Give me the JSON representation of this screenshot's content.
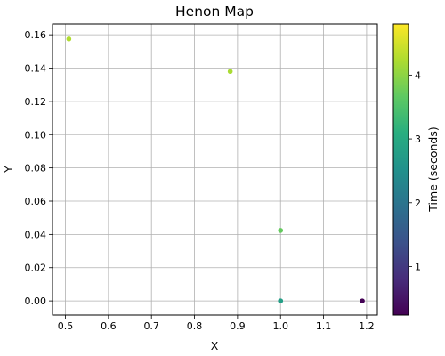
{
  "chart_data": {
    "type": "scatter",
    "title": "Henon Map",
    "xlabel": "X",
    "ylabel": "Y",
    "xlim": [
      0.47,
      1.225
    ],
    "ylim": [
      -0.0085,
      0.1665
    ],
    "xticks": [
      0.5,
      0.6,
      0.7,
      0.8,
      0.9,
      1.0,
      1.1,
      1.2
    ],
    "xtick_labels": [
      "0.5",
      "0.6",
      "0.7",
      "0.8",
      "0.9",
      "1.0",
      "1.1",
      "1.2"
    ],
    "yticks": [
      0.0,
      0.02,
      0.04,
      0.06,
      0.08,
      0.1,
      0.12,
      0.14,
      0.16
    ],
    "ytick_labels": [
      "0.00",
      "0.02",
      "0.04",
      "0.06",
      "0.08",
      "0.10",
      "0.12",
      "0.14",
      "0.16"
    ],
    "grid": true,
    "colormap": "viridis",
    "colorbar": {
      "label": "Time  (seconds)",
      "range": [
        0.24,
        4.8
      ],
      "ticks": [
        1,
        2,
        3,
        4
      ],
      "tick_labels": [
        "1",
        "2",
        "3",
        "4"
      ]
    },
    "points": [
      {
        "x": 1.19,
        "y": 0.0,
        "t": 0.25
      },
      {
        "x": 1.0,
        "y": 0.0,
        "t": 2.5
      },
      {
        "x": 1.0,
        "y": 0.0,
        "t": 2.8
      },
      {
        "x": 1.0,
        "y": 0.0424,
        "t": 3.7
      },
      {
        "x": 0.883,
        "y": 0.138,
        "t": 4.2
      },
      {
        "x": 0.508,
        "y": 0.1575,
        "t": 4.25
      }
    ]
  }
}
